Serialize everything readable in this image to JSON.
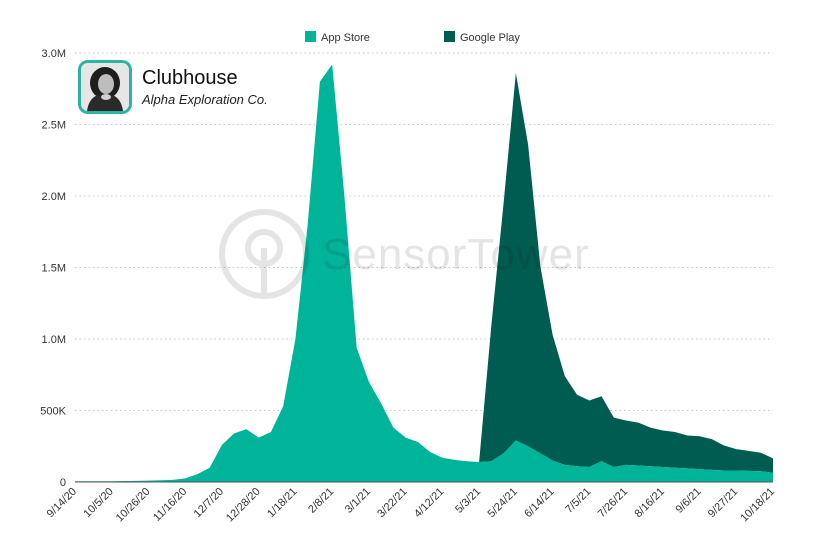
{
  "app": {
    "name": "Clubhouse",
    "publisher": "Alpha Exploration Co.",
    "icon": "portrait-avatar-icon"
  },
  "watermark": {
    "text": "SensorTower",
    "icon": "sensor-tower-logo-icon"
  },
  "colors": {
    "app_store": "#00b49a",
    "google_play": "#005c50",
    "grid": "#c8c8c8",
    "axis": "#555555"
  },
  "chart_data": {
    "type": "area",
    "stacked": true,
    "title": "",
    "xlabel": "",
    "ylabel": "",
    "ylim": [
      0,
      3000000
    ],
    "yticks": [
      0,
      500000,
      1000000,
      1500000,
      2000000,
      2500000,
      3000000
    ],
    "ytick_labels": [
      "0",
      "500K",
      "1.0M",
      "1.5M",
      "2.0M",
      "2.5M",
      "3.0M"
    ],
    "grid": true,
    "legend": "top-center",
    "x": [
      "9/14/20",
      "9/21/20",
      "9/28/20",
      "10/5/20",
      "10/12/20",
      "10/19/20",
      "10/26/20",
      "11/2/20",
      "11/9/20",
      "11/16/20",
      "11/23/20",
      "11/30/20",
      "12/7/20",
      "12/14/20",
      "12/21/20",
      "12/28/20",
      "1/4/21",
      "1/11/21",
      "1/18/21",
      "1/25/21",
      "2/1/21",
      "2/8/21",
      "2/15/21",
      "2/22/21",
      "3/1/21",
      "3/8/21",
      "3/15/21",
      "3/22/21",
      "3/29/21",
      "4/5/21",
      "4/12/21",
      "4/19/21",
      "4/26/21",
      "5/3/21",
      "5/10/21",
      "5/17/21",
      "5/24/21",
      "5/31/21",
      "6/7/21",
      "6/14/21",
      "6/21/21",
      "6/28/21",
      "7/5/21",
      "7/12/21",
      "7/19/21",
      "7/26/21",
      "8/2/21",
      "8/9/21",
      "8/16/21",
      "8/23/21",
      "8/30/21",
      "9/6/21",
      "9/13/21",
      "9/20/21",
      "9/27/21",
      "10/4/21",
      "10/11/21",
      "10/18/21"
    ],
    "x_tick_labels": [
      "9/14/20",
      "10/5/20",
      "10/26/20",
      "11/16/20",
      "12/7/20",
      "12/28/20",
      "1/18/21",
      "2/8/21",
      "3/1/21",
      "3/22/21",
      "4/12/21",
      "5/3/21",
      "5/24/21",
      "6/14/21",
      "7/5/21",
      "7/26/21",
      "8/16/21",
      "9/6/21",
      "9/27/21",
      "10/18/21"
    ],
    "series": [
      {
        "name": "App Store",
        "values": [
          5000,
          5000,
          5000,
          5000,
          7000,
          8000,
          10000,
          12000,
          15000,
          25000,
          55000,
          100000,
          260000,
          340000,
          370000,
          310000,
          350000,
          530000,
          1000000,
          1800000,
          2800000,
          2920000,
          2000000,
          940000,
          700000,
          550000,
          380000,
          310000,
          280000,
          210000,
          170000,
          155000,
          145000,
          140000,
          145000,
          200000,
          290000,
          250000,
          200000,
          150000,
          120000,
          110000,
          105000,
          145000,
          105000,
          120000,
          115000,
          110000,
          105000,
          100000,
          95000,
          90000,
          85000,
          80000,
          80000,
          78000,
          75000,
          65000
        ]
      },
      {
        "name": "Google Play",
        "values": [
          0,
          0,
          0,
          0,
          0,
          0,
          0,
          0,
          0,
          0,
          0,
          0,
          0,
          0,
          0,
          0,
          0,
          0,
          0,
          0,
          0,
          0,
          0,
          0,
          0,
          0,
          0,
          0,
          0,
          0,
          0,
          0,
          0,
          0,
          950000,
          1750000,
          2570000,
          2110000,
          1310000,
          880000,
          620000,
          500000,
          465000,
          455000,
          345000,
          310000,
          300000,
          270000,
          255000,
          250000,
          230000,
          230000,
          215000,
          175000,
          150000,
          140000,
          130000,
          100000
        ]
      }
    ]
  }
}
